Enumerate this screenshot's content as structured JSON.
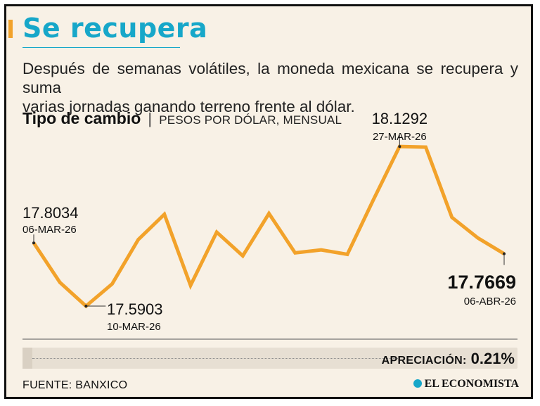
{
  "header": {
    "title": "Se recupera",
    "subtitle_line1": "Después de semanas volátiles, la moneda mexicana se recupera y suma",
    "subtitle_line2": "varias jornadas ganando terreno frente al dólar."
  },
  "chart_heading": {
    "title": "Tipo de cambio",
    "separator": "|",
    "unit": "PESOS POR DÓLAR, MENSUAL"
  },
  "colors": {
    "line": "#f2a22a",
    "title": "#17a7c9",
    "background": "#f8f1e6"
  },
  "chart_data": {
    "type": "line",
    "title": "Tipo de cambio",
    "ylabel": "PESOS POR DÓLAR, MENSUAL",
    "ylim": [
      17.45,
      18.22
    ],
    "grid": false,
    "legend": "none",
    "series": [
      {
        "values": [
          17.8034,
          17.67,
          17.5903,
          17.665,
          17.815,
          17.9,
          17.66,
          17.84,
          17.76,
          17.903,
          17.77,
          17.78,
          17.765,
          17.95,
          18.1292,
          18.127,
          17.89,
          17.82,
          17.7669
        ]
      }
    ],
    "annotations": [
      {
        "index": 0,
        "value": "17.8034",
        "date": "06-MAR-26"
      },
      {
        "index": 2,
        "value": "17.5903",
        "date": "10-MAR-26"
      },
      {
        "index": 14,
        "value": "18.1292",
        "date": "27-MAR-26"
      },
      {
        "index": 18,
        "value": "17.7669",
        "date": "06-ABR-26"
      }
    ]
  },
  "summary": {
    "label": "APRECIACIÓN:",
    "value": "0.21%"
  },
  "footer": {
    "source": "FUENTE: BANXICO",
    "brand": "EL ECONOMISTA"
  }
}
